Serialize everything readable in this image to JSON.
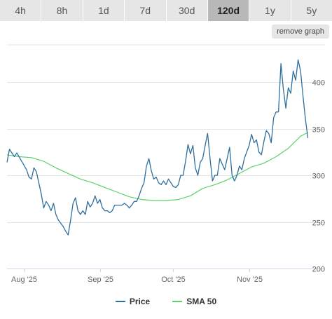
{
  "tabs": [
    {
      "label": "4h",
      "active": false
    },
    {
      "label": "8h",
      "active": false
    },
    {
      "label": "1d",
      "active": false
    },
    {
      "label": "7d",
      "active": false
    },
    {
      "label": "30d",
      "active": false
    },
    {
      "label": "120d",
      "active": true
    },
    {
      "label": "1y",
      "active": false
    },
    {
      "label": "5y",
      "active": false
    }
  ],
  "remove_graph_label": "remove graph",
  "colors": {
    "price": "#2e6f9e",
    "sma": "#5cd16c",
    "grid": "#e6e6e6",
    "axis": "#ccd6eb"
  },
  "chart_data": {
    "type": "line",
    "x_label_type": "date",
    "xlim": [
      "2025-07-25",
      "2025-12-02"
    ],
    "ylim": [
      200,
      440
    ],
    "y_ticks": [
      200,
      250,
      300,
      350,
      400
    ],
    "x_ticks": [
      {
        "date": "2025-08-01",
        "label": "Aug '25"
      },
      {
        "date": "2025-09-01",
        "label": "Sep '25"
      },
      {
        "date": "2025-10-01",
        "label": "Oct '25"
      },
      {
        "date": "2025-11-01",
        "label": "Nov '25"
      }
    ],
    "grid": true,
    "legend_position": "bottom-center",
    "series": [
      {
        "name": "Price",
        "points": [
          [
            "2025-07-25",
            314
          ],
          [
            "2025-07-26",
            328
          ],
          [
            "2025-07-28",
            320
          ],
          [
            "2025-07-29",
            324
          ],
          [
            "2025-07-31",
            315
          ],
          [
            "2025-08-02",
            306
          ],
          [
            "2025-08-03",
            298
          ],
          [
            "2025-08-04",
            296
          ],
          [
            "2025-08-05",
            308
          ],
          [
            "2025-08-06",
            304
          ],
          [
            "2025-08-07",
            292
          ],
          [
            "2025-08-08",
            280
          ],
          [
            "2025-08-09",
            265
          ],
          [
            "2025-08-10",
            272
          ],
          [
            "2025-08-11",
            268
          ],
          [
            "2025-08-12",
            262
          ],
          [
            "2025-08-13",
            270
          ],
          [
            "2025-08-14",
            258
          ],
          [
            "2025-08-15",
            252
          ],
          [
            "2025-08-17",
            245
          ],
          [
            "2025-08-18",
            240
          ],
          [
            "2025-08-19",
            236
          ],
          [
            "2025-08-20",
            252
          ],
          [
            "2025-08-21",
            270
          ],
          [
            "2025-08-22",
            276
          ],
          [
            "2025-08-23",
            262
          ],
          [
            "2025-08-24",
            258
          ],
          [
            "2025-08-25",
            262
          ],
          [
            "2025-08-26",
            258
          ],
          [
            "2025-08-27",
            272
          ],
          [
            "2025-08-28",
            266
          ],
          [
            "2025-08-29",
            270
          ],
          [
            "2025-08-30",
            278
          ],
          [
            "2025-08-31",
            270
          ],
          [
            "2025-09-01",
            274
          ],
          [
            "2025-09-02",
            265
          ],
          [
            "2025-09-03",
            262
          ],
          [
            "2025-09-04",
            262
          ],
          [
            "2025-09-05",
            260
          ],
          [
            "2025-09-06",
            262
          ],
          [
            "2025-09-07",
            268
          ],
          [
            "2025-09-08",
            268
          ],
          [
            "2025-09-10",
            268
          ],
          [
            "2025-09-11",
            270
          ],
          [
            "2025-09-12",
            268
          ],
          [
            "2025-09-13",
            265
          ],
          [
            "2025-09-14",
            268
          ],
          [
            "2025-09-15",
            272
          ],
          [
            "2025-09-16",
            272
          ],
          [
            "2025-09-17",
            278
          ],
          [
            "2025-09-18",
            286
          ],
          [
            "2025-09-19",
            292
          ],
          [
            "2025-09-20",
            310
          ],
          [
            "2025-09-21",
            318
          ],
          [
            "2025-09-22",
            305
          ],
          [
            "2025-09-23",
            296
          ],
          [
            "2025-09-24",
            298
          ],
          [
            "2025-09-25",
            292
          ],
          [
            "2025-09-26",
            290
          ],
          [
            "2025-09-27",
            294
          ],
          [
            "2025-09-28",
            290
          ],
          [
            "2025-09-29",
            296
          ],
          [
            "2025-09-30",
            292
          ],
          [
            "2025-10-01",
            288
          ],
          [
            "2025-10-02",
            287
          ],
          [
            "2025-10-03",
            290
          ],
          [
            "2025-10-04",
            300
          ],
          [
            "2025-10-05",
            300
          ],
          [
            "2025-10-06",
            315
          ],
          [
            "2025-10-07",
            333
          ],
          [
            "2025-10-08",
            323
          ],
          [
            "2025-10-09",
            332
          ],
          [
            "2025-10-10",
            308
          ],
          [
            "2025-10-11",
            300
          ],
          [
            "2025-10-12",
            314
          ],
          [
            "2025-10-13",
            318
          ],
          [
            "2025-10-14",
            332
          ],
          [
            "2025-10-15",
            345
          ],
          [
            "2025-10-16",
            318
          ],
          [
            "2025-10-17",
            294
          ],
          [
            "2025-10-18",
            300
          ],
          [
            "2025-10-19",
            300
          ],
          [
            "2025-10-20",
            318
          ],
          [
            "2025-10-21",
            312
          ],
          [
            "2025-10-22",
            306
          ],
          [
            "2025-10-23",
            318
          ],
          [
            "2025-10-24",
            330
          ],
          [
            "2025-10-25",
            300
          ],
          [
            "2025-10-26",
            294
          ],
          [
            "2025-10-27",
            300
          ],
          [
            "2025-10-28",
            310
          ],
          [
            "2025-10-29",
            306
          ],
          [
            "2025-10-30",
            318
          ],
          [
            "2025-10-31",
            325
          ],
          [
            "2025-11-01",
            332
          ],
          [
            "2025-11-02",
            344
          ],
          [
            "2025-11-03",
            335
          ],
          [
            "2025-11-04",
            338
          ],
          [
            "2025-11-05",
            325
          ],
          [
            "2025-11-06",
            322
          ],
          [
            "2025-11-07",
            336
          ],
          [
            "2025-11-08",
            348
          ],
          [
            "2025-11-09",
            345
          ],
          [
            "2025-11-10",
            335
          ],
          [
            "2025-11-11",
            362
          ],
          [
            "2025-11-12",
            368
          ],
          [
            "2025-11-13",
            368
          ],
          [
            "2025-11-14",
            420
          ],
          [
            "2025-11-15",
            392
          ],
          [
            "2025-11-16",
            372
          ],
          [
            "2025-11-17",
            394
          ],
          [
            "2025-11-18",
            388
          ],
          [
            "2025-11-19",
            412
          ],
          [
            "2025-11-20",
            402
          ],
          [
            "2025-11-21",
            424
          ],
          [
            "2025-11-22",
            412
          ],
          [
            "2025-11-23",
            385
          ],
          [
            "2025-11-24",
            360
          ],
          [
            "2025-11-25",
            340
          ]
        ]
      },
      {
        "name": "SMA 50",
        "points": [
          [
            "2025-07-25",
            322
          ],
          [
            "2025-07-30",
            320
          ],
          [
            "2025-08-04",
            319
          ],
          [
            "2025-08-09",
            315
          ],
          [
            "2025-08-14",
            308
          ],
          [
            "2025-08-19",
            302
          ],
          [
            "2025-08-24",
            296
          ],
          [
            "2025-08-29",
            292
          ],
          [
            "2025-09-03",
            287
          ],
          [
            "2025-09-08",
            282
          ],
          [
            "2025-09-13",
            277
          ],
          [
            "2025-09-18",
            274
          ],
          [
            "2025-09-23",
            273
          ],
          [
            "2025-09-28",
            273
          ],
          [
            "2025-10-03",
            274
          ],
          [
            "2025-10-08",
            278
          ],
          [
            "2025-10-13",
            286
          ],
          [
            "2025-10-18",
            290
          ],
          [
            "2025-10-23",
            295
          ],
          [
            "2025-10-28",
            302
          ],
          [
            "2025-11-02",
            309
          ],
          [
            "2025-11-07",
            313
          ],
          [
            "2025-11-12",
            320
          ],
          [
            "2025-11-17",
            329
          ],
          [
            "2025-11-22",
            342
          ],
          [
            "2025-11-25",
            346
          ]
        ]
      }
    ]
  }
}
